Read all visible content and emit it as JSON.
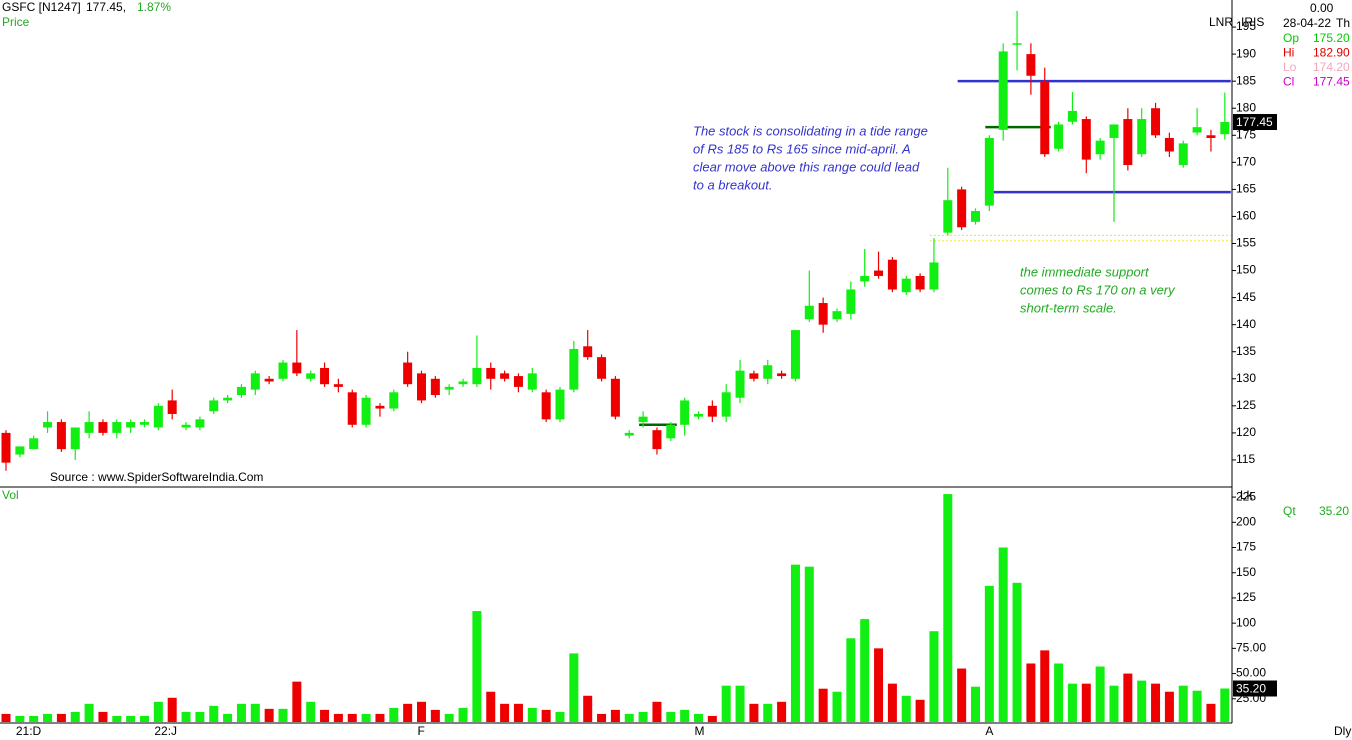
{
  "header": {
    "symbol": "GSFC [N1247]",
    "price": "177.45,",
    "change": "1.87%",
    "panel": "Price",
    "change_readout": "0.00",
    "date": "28-04-22",
    "weekday": "Th",
    "scale": "LNR",
    "tool": "IRIS",
    "ohlc": [
      {
        "label": "Op",
        "value": "175.20",
        "color": "#00cc00"
      },
      {
        "label": "Hi",
        "value": "182.90",
        "color": "#dd0000"
      },
      {
        "label": "Lo",
        "value": "174.20",
        "color": "#f0a8c0"
      },
      {
        "label": "Cl",
        "value": "177.45",
        "color": "#cc00cc"
      }
    ],
    "last_price": "177.45",
    "source": "Source : www.SpiderSoftwareIndia.Com",
    "volume_panel": "Vol",
    "volume_unit": "Lk",
    "qty_label": "Qt",
    "qty_value": "35.20",
    "last_volume": "35.20",
    "period": "Dly"
  },
  "annotations": [
    {
      "lines": [
        "The stock is consolidating in a tide range",
        "of Rs 185 to Rs 165 since mid-april. A",
        "clear move above this range could lead",
        "to a breakout."
      ],
      "color": "#3333cc"
    },
    {
      "lines": [
        "the immediate support",
        "comes to Rs 170 on a very",
        "short-term scale."
      ],
      "color": "#22aa22"
    }
  ],
  "chart_data": [
    {
      "type": "candlestick",
      "up_color": "#11ee11",
      "down_color": "#ee0000",
      "categories": [
        null,
        "21:D",
        null,
        null,
        null,
        null,
        null,
        null,
        null,
        null,
        null,
        "22:J",
        null,
        null,
        null,
        null,
        null,
        null,
        null,
        null,
        null,
        null,
        null,
        null,
        null,
        null,
        null,
        null,
        null,
        null,
        "F",
        null,
        null,
        null,
        null,
        null,
        null,
        null,
        null,
        null,
        null,
        null,
        null,
        null,
        null,
        null,
        null,
        null,
        null,
        null,
        "M",
        null,
        null,
        null,
        null,
        null,
        null,
        null,
        null,
        null,
        null,
        null,
        null,
        null,
        null,
        null,
        null,
        null,
        null,
        null,
        null,
        "A",
        null,
        null,
        null,
        null,
        null,
        null,
        null,
        null,
        null,
        null,
        null,
        null,
        null,
        null,
        null,
        null,
        null
      ],
      "open": [
        120,
        116,
        117,
        121,
        122,
        117,
        120,
        122,
        120,
        121,
        121.5,
        121,
        126,
        121,
        121,
        124,
        126,
        127,
        128,
        130,
        130,
        133,
        130,
        132,
        129,
        127.5,
        121.5,
        125,
        124.5,
        133,
        131,
        130,
        128,
        129,
        129,
        132,
        131,
        130.5,
        128,
        127.5,
        122.5,
        128,
        136,
        134,
        130,
        119.5,
        122,
        120.5,
        119,
        121.5,
        123,
        125,
        123,
        126.5,
        131,
        130,
        131,
        130,
        141,
        144,
        141,
        142,
        148,
        150,
        152,
        146,
        149,
        146.5,
        157,
        165,
        159,
        162,
        176,
        192,
        190,
        185,
        172.5,
        177.5,
        178,
        171.5,
        174.5,
        178,
        171.5,
        180,
        174.5,
        169.5,
        175.5,
        175,
        175.2
      ],
      "high": [
        120.5,
        117.5,
        119.5,
        124,
        122.5,
        121,
        124,
        122.5,
        122.5,
        122.5,
        122.5,
        125.5,
        128,
        122,
        123,
        126.5,
        127,
        129,
        131.5,
        130.5,
        133.5,
        139,
        131.5,
        133,
        130,
        128,
        127,
        125.5,
        128,
        135,
        131.5,
        130.5,
        129,
        130,
        138,
        133,
        131.5,
        131,
        132,
        128,
        128.5,
        137,
        139,
        134.5,
        130.5,
        120.5,
        124,
        121,
        122,
        126.5,
        124,
        126,
        129,
        133.5,
        131.5,
        133.5,
        131.5,
        139,
        150,
        145,
        143,
        148,
        154,
        153.5,
        152.5,
        149,
        149.5,
        156,
        169,
        165.5,
        161.5,
        175,
        192,
        198,
        192,
        187.5,
        177.5,
        183,
        178.5,
        174.5,
        177,
        180,
        180,
        181,
        175.5,
        174,
        180,
        176,
        182.9
      ],
      "low": [
        113,
        115.5,
        117,
        120,
        116.5,
        115,
        119,
        119.5,
        119,
        120,
        121,
        120.5,
        122.5,
        120.5,
        120.5,
        123.5,
        125.5,
        126.5,
        127,
        129,
        129.5,
        130.5,
        129.5,
        128.5,
        127.5,
        121,
        121,
        123,
        124,
        128.5,
        125.5,
        126.5,
        127,
        128.5,
        128.5,
        128,
        129.5,
        127.5,
        127.5,
        122,
        122,
        127.5,
        133.5,
        129.5,
        122.5,
        119,
        121,
        116,
        118.5,
        119.5,
        122.5,
        122,
        122,
        125.5,
        129.5,
        129,
        130,
        129.5,
        140.5,
        138.5,
        140.5,
        141,
        147,
        148.5,
        146,
        145.5,
        146,
        146,
        156.5,
        157.5,
        158.5,
        161,
        174,
        187,
        182.5,
        171,
        172,
        177,
        168,
        170.5,
        159,
        168.5,
        171,
        174.5,
        171,
        169,
        175,
        172,
        174.2
      ],
      "close": [
        114.5,
        117.5,
        119,
        122,
        117,
        121,
        122,
        120,
        122,
        122,
        122,
        125,
        123.5,
        121.5,
        122.5,
        126,
        126.5,
        128.5,
        131,
        129.5,
        133,
        131,
        131,
        129,
        128.5,
        121.5,
        126.5,
        124.5,
        127.5,
        129,
        126,
        127,
        128.5,
        129.5,
        132,
        130,
        130,
        128.5,
        131,
        122.5,
        128,
        135.5,
        134,
        130,
        123,
        120,
        123,
        117,
        121.5,
        126,
        123.5,
        123,
        127.5,
        131.5,
        130,
        132.5,
        130.5,
        139,
        143.5,
        140,
        142.5,
        146.5,
        149,
        149,
        146.5,
        148.5,
        146.5,
        151.5,
        163,
        158,
        161,
        174.5,
        190.5,
        192,
        186,
        171.5,
        177,
        179.5,
        170.5,
        174,
        177,
        169.5,
        178,
        175,
        172,
        173.5,
        176.5,
        174.5,
        177.45
      ],
      "ylim": [
        110,
        200
      ],
      "yticks": [
        115,
        120,
        125,
        130,
        135,
        140,
        145,
        150,
        155,
        160,
        165,
        170,
        175,
        180,
        185,
        190,
        195
      ],
      "levels": [
        {
          "value": 185,
          "start": 69,
          "end": 88,
          "color": "#3333cc"
        },
        {
          "value": 164.5,
          "start": 71,
          "end": 88,
          "color": "#3333cc"
        },
        {
          "value": 176.5,
          "start": 71,
          "end": 75,
          "color": "#006600"
        },
        {
          "value": 121.5,
          "start": 46,
          "end": 48,
          "color": "#006600"
        },
        {
          "value": 156.5,
          "start": 67,
          "end": 88,
          "color": "#e8e840"
        },
        {
          "value": 155.5,
          "start": 67,
          "end": 88,
          "color": "#e8e840"
        }
      ]
    },
    {
      "type": "bar",
      "values": [
        10,
        8,
        8,
        10,
        10,
        12,
        20,
        12,
        8,
        8,
        8,
        22,
        26,
        12,
        12,
        18,
        10,
        20,
        20,
        15,
        15,
        42,
        22,
        14,
        10,
        10,
        10,
        10,
        16,
        20,
        22,
        14,
        10,
        16,
        112,
        32,
        20,
        20,
        16,
        14,
        12,
        70,
        28,
        10,
        14,
        10,
        12,
        22,
        12,
        14,
        10,
        8,
        38,
        38,
        20,
        20,
        22,
        158,
        156,
        35,
        32,
        85,
        104,
        75,
        40,
        28,
        24,
        92,
        228,
        55,
        37,
        137,
        175,
        140,
        60,
        73,
        60,
        40,
        40,
        57,
        38,
        50,
        43,
        40,
        32,
        38,
        33,
        20,
        35.2
      ],
      "ylim": [
        0,
        235
      ],
      "yticks": [
        {
          "value": 25,
          "label": "25.00"
        },
        {
          "value": 50,
          "label": "50.00"
        },
        {
          "value": 75,
          "label": "75.00"
        },
        100,
        125,
        150,
        175,
        200,
        225
      ]
    }
  ]
}
